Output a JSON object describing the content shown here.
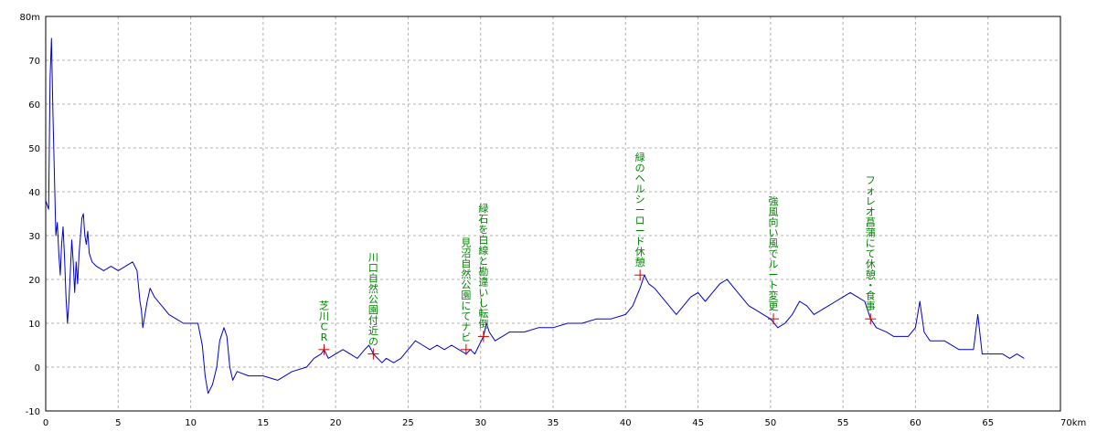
{
  "chart_data": {
    "type": "line",
    "x_unit_label": "70km",
    "y_unit_label": "80m",
    "xlim": [
      0,
      70
    ],
    "ylim": [
      -10,
      80
    ],
    "grid": true,
    "x_ticks": [
      0,
      5,
      10,
      15,
      20,
      25,
      30,
      35,
      40,
      45,
      50,
      55,
      60,
      65
    ],
    "y_ticks": [
      -10,
      0,
      10,
      20,
      30,
      40,
      50,
      60,
      70
    ],
    "series": [
      {
        "color": "#0000cc",
        "points": [
          [
            0.0,
            38
          ],
          [
            0.2,
            36
          ],
          [
            0.3,
            66
          ],
          [
            0.4,
            75
          ],
          [
            0.5,
            58
          ],
          [
            0.6,
            44
          ],
          [
            0.7,
            30
          ],
          [
            0.8,
            33
          ],
          [
            0.9,
            26
          ],
          [
            1.0,
            21
          ],
          [
            1.1,
            28
          ],
          [
            1.2,
            32
          ],
          [
            1.3,
            25
          ],
          [
            1.4,
            16
          ],
          [
            1.5,
            10
          ],
          [
            1.6,
            15
          ],
          [
            1.7,
            22
          ],
          [
            1.8,
            29
          ],
          [
            1.9,
            24
          ],
          [
            2.0,
            17
          ],
          [
            2.1,
            24
          ],
          [
            2.2,
            19
          ],
          [
            2.3,
            26
          ],
          [
            2.4,
            30
          ],
          [
            2.5,
            34
          ],
          [
            2.6,
            35
          ],
          [
            2.7,
            30
          ],
          [
            2.8,
            28
          ],
          [
            2.9,
            31
          ],
          [
            3.0,
            26
          ],
          [
            3.2,
            24
          ],
          [
            3.5,
            23
          ],
          [
            4.0,
            22
          ],
          [
            4.5,
            23
          ],
          [
            5.0,
            22
          ],
          [
            5.5,
            23
          ],
          [
            6.0,
            24
          ],
          [
            6.3,
            22
          ],
          [
            6.5,
            15
          ],
          [
            6.6,
            13
          ],
          [
            6.7,
            9
          ],
          [
            6.8,
            11
          ],
          [
            7.0,
            15
          ],
          [
            7.2,
            18
          ],
          [
            7.5,
            16
          ],
          [
            8.0,
            14
          ],
          [
            8.5,
            12
          ],
          [
            9.0,
            11
          ],
          [
            9.5,
            10
          ],
          [
            10.0,
            10
          ],
          [
            10.5,
            10
          ],
          [
            10.8,
            5
          ],
          [
            11.0,
            -2
          ],
          [
            11.2,
            -6
          ],
          [
            11.5,
            -4
          ],
          [
            11.8,
            0
          ],
          [
            12.0,
            6
          ],
          [
            12.3,
            9
          ],
          [
            12.5,
            7
          ],
          [
            12.7,
            0
          ],
          [
            12.9,
            -3
          ],
          [
            13.2,
            -1
          ],
          [
            14.0,
            -2
          ],
          [
            15.0,
            -2
          ],
          [
            16.0,
            -3
          ],
          [
            17.0,
            -1
          ],
          [
            18.0,
            0
          ],
          [
            18.5,
            2
          ],
          [
            19.0,
            3
          ],
          [
            19.2,
            4
          ],
          [
            19.5,
            2
          ],
          [
            20.0,
            3
          ],
          [
            20.5,
            4
          ],
          [
            21.0,
            3
          ],
          [
            21.5,
            2
          ],
          [
            22.0,
            4
          ],
          [
            22.3,
            5
          ],
          [
            22.6,
            3
          ],
          [
            22.9,
            2
          ],
          [
            23.2,
            1
          ],
          [
            23.5,
            2
          ],
          [
            24.0,
            1
          ],
          [
            24.5,
            2
          ],
          [
            25.0,
            4
          ],
          [
            25.5,
            6
          ],
          [
            26.0,
            5
          ],
          [
            26.5,
            4
          ],
          [
            27.0,
            5
          ],
          [
            27.5,
            4
          ],
          [
            28.0,
            5
          ],
          [
            28.5,
            4
          ],
          [
            29.0,
            3
          ],
          [
            29.3,
            4
          ],
          [
            29.6,
            3
          ],
          [
            29.9,
            5
          ],
          [
            30.2,
            7
          ],
          [
            30.4,
            10
          ],
          [
            30.6,
            8
          ],
          [
            31.0,
            6
          ],
          [
            31.5,
            7
          ],
          [
            32.0,
            8
          ],
          [
            33.0,
            8
          ],
          [
            34.0,
            9
          ],
          [
            35.0,
            9
          ],
          [
            36.0,
            10
          ],
          [
            37.0,
            10
          ],
          [
            38.0,
            11
          ],
          [
            39.0,
            11
          ],
          [
            40.0,
            12
          ],
          [
            40.5,
            14
          ],
          [
            41.0,
            18
          ],
          [
            41.3,
            21
          ],
          [
            41.6,
            19
          ],
          [
            42.0,
            18
          ],
          [
            42.5,
            16
          ],
          [
            43.0,
            14
          ],
          [
            43.5,
            12
          ],
          [
            44.0,
            14
          ],
          [
            44.5,
            16
          ],
          [
            45.0,
            17
          ],
          [
            45.5,
            15
          ],
          [
            46.0,
            17
          ],
          [
            46.5,
            19
          ],
          [
            47.0,
            20
          ],
          [
            47.5,
            18
          ],
          [
            48.0,
            16
          ],
          [
            48.5,
            14
          ],
          [
            49.0,
            13
          ],
          [
            49.5,
            12
          ],
          [
            50.0,
            11
          ],
          [
            50.5,
            9
          ],
          [
            51.0,
            10
          ],
          [
            51.5,
            12
          ],
          [
            52.0,
            15
          ],
          [
            52.5,
            14
          ],
          [
            53.0,
            12
          ],
          [
            53.5,
            13
          ],
          [
            54.0,
            14
          ],
          [
            54.5,
            15
          ],
          [
            55.0,
            16
          ],
          [
            55.5,
            17
          ],
          [
            56.0,
            16
          ],
          [
            56.5,
            15
          ],
          [
            56.9,
            11
          ],
          [
            57.3,
            9
          ],
          [
            58.0,
            8
          ],
          [
            58.5,
            7
          ],
          [
            59.0,
            7
          ],
          [
            59.5,
            7
          ],
          [
            60.0,
            9
          ],
          [
            60.3,
            15
          ],
          [
            60.6,
            8
          ],
          [
            61.0,
            6
          ],
          [
            62.0,
            6
          ],
          [
            63.0,
            4
          ],
          [
            63.5,
            4
          ],
          [
            64.0,
            4
          ],
          [
            64.3,
            12
          ],
          [
            64.6,
            3
          ],
          [
            65.0,
            3
          ],
          [
            65.5,
            3
          ],
          [
            66.0,
            3
          ],
          [
            66.5,
            2
          ],
          [
            67.0,
            3
          ],
          [
            67.5,
            2
          ]
        ]
      }
    ],
    "annotations": [
      {
        "x": 19.2,
        "y": 4,
        "text": "芝川CR"
      },
      {
        "x": 22.6,
        "y": 3,
        "text": "川口自然公園付近の"
      },
      {
        "x": 29.0,
        "y": 4,
        "text": "見沼自然公園にてナビ"
      },
      {
        "x": 30.2,
        "y": 7,
        "text": "緑石を白線と勘違いし転倒"
      },
      {
        "x": 41.0,
        "y": 21,
        "text": "緑のヘルシーロード休憩"
      },
      {
        "x": 50.2,
        "y": 11,
        "text": "強風向い風でルート変更"
      },
      {
        "x": 56.9,
        "y": 11,
        "text": "フォレオ菖蒲にて休憩・食事"
      }
    ],
    "annotation_color": "#008000",
    "marker_color": "#cc0000"
  }
}
